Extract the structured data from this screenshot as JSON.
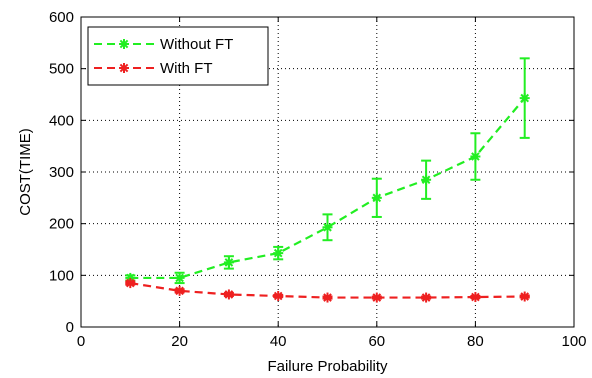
{
  "chart_data": {
    "type": "line",
    "title": "",
    "xlabel": "Failure Probability",
    "ylabel": "COST(TIME)",
    "xlim": [
      0,
      100
    ],
    "ylim": [
      0,
      600
    ],
    "xticks": [
      0,
      20,
      40,
      60,
      80,
      100
    ],
    "yticks": [
      0,
      100,
      200,
      300,
      400,
      500,
      600
    ],
    "grid": true,
    "legend_position": "top-left",
    "x": [
      10,
      20,
      30,
      40,
      50,
      60,
      70,
      80,
      90
    ],
    "series": [
      {
        "name": "Without FT",
        "color": "#22ee22",
        "marker": "asterisk",
        "line_style": "dashed",
        "values": [
          95,
          95,
          125,
          143,
          193,
          250,
          285,
          330,
          443
        ],
        "error": [
          5,
          10,
          12,
          12,
          25,
          37,
          37,
          45,
          77
        ]
      },
      {
        "name": "With FT",
        "color": "#ee2020",
        "marker": "asterisk",
        "line_style": "dashed",
        "values": [
          85,
          70,
          63,
          60,
          57,
          57,
          57,
          58,
          59
        ],
        "error": [
          3,
          3,
          3,
          2,
          2,
          2,
          2,
          2,
          2
        ]
      }
    ]
  }
}
